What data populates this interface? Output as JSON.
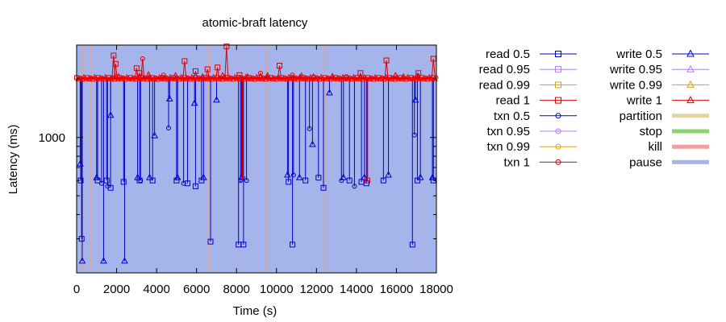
{
  "chart_data": {
    "type": "line",
    "title": "atomic-braft latency",
    "xlabel": "Time (s)",
    "ylabel": "Latency (ms)",
    "xlim": [
      0,
      18000
    ],
    "x_ticks": [
      0,
      2000,
      4000,
      6000,
      8000,
      10000,
      12000,
      14000,
      16000,
      18000
    ],
    "ylim": [
      200,
      3000
    ],
    "y_scale": "log",
    "y_ticks": [
      1000
    ],
    "background_shading": {
      "name": "pause",
      "color": "#a5b4ea",
      "range": [
        0,
        18000
      ]
    },
    "nemesis_lines": [
      {
        "name": "partition",
        "color": "#e3d89a",
        "x": [
          300,
          700,
          6600,
          8100,
          9500,
          12400,
          17300
        ]
      }
    ],
    "legend_placement": "outside-right",
    "legend": [
      {
        "name": "read 0.5",
        "color": "#0000cc",
        "marker": "square"
      },
      {
        "name": "read 0.95",
        "color": "#b07ef0",
        "marker": "square"
      },
      {
        "name": "read 0.99",
        "color": "#d4a017",
        "marker": "square"
      },
      {
        "name": "read 1",
        "color": "#dd0000",
        "marker": "square"
      },
      {
        "name": "txn 0.5",
        "color": "#0000cc",
        "marker": "circle"
      },
      {
        "name": "txn 0.95",
        "color": "#b07ef0",
        "marker": "circle"
      },
      {
        "name": "txn 0.99",
        "color": "#d4a017",
        "marker": "circle"
      },
      {
        "name": "txn 1",
        "color": "#dd0000",
        "marker": "circle"
      },
      {
        "name": "write 0.5",
        "color": "#0000cc",
        "marker": "triangle"
      },
      {
        "name": "write 0.95",
        "color": "#b07ef0",
        "marker": "triangle"
      },
      {
        "name": "write 0.99",
        "color": "#d4a017",
        "marker": "triangle"
      },
      {
        "name": "write 1",
        "color": "#dd0000",
        "marker": "triangle"
      },
      {
        "name": "partition",
        "color": "#e3d89a",
        "marker": "bar"
      },
      {
        "name": "stop",
        "color": "#88d570",
        "marker": "bar"
      },
      {
        "name": "kill",
        "color": "#f0a0a0",
        "marker": "bar"
      },
      {
        "name": "pause",
        "color": "#a5b4ea",
        "marker": "bar"
      }
    ],
    "baseline_ms": 2020,
    "series": [
      {
        "name": "write 0.5",
        "color": "#0000cc",
        "marker": "triangle",
        "dips": [
          [
            180,
            730
          ],
          [
            280,
            230
          ],
          [
            1000,
            620
          ],
          [
            1350,
            230
          ],
          [
            1700,
            1300
          ],
          [
            2400,
            230
          ],
          [
            3050,
            620
          ],
          [
            3650,
            620
          ],
          [
            3900,
            1020
          ],
          [
            4650,
            1580
          ],
          [
            5050,
            620
          ],
          [
            5900,
            1500
          ],
          [
            6350,
            620
          ],
          [
            7000,
            1560
          ],
          [
            8250,
            620
          ],
          [
            10550,
            640
          ],
          [
            11150,
            620
          ],
          [
            11800,
            920
          ],
          [
            12650,
            1700
          ],
          [
            13350,
            620
          ],
          [
            14400,
            620
          ],
          [
            15600,
            640
          ],
          [
            16950,
            1560
          ],
          [
            17200,
            620
          ],
          [
            17800,
            620
          ]
        ]
      },
      {
        "name": "read 0.5",
        "color": "#0000cc",
        "marker": "square",
        "dips": [
          [
            200,
            600
          ],
          [
            250,
            300
          ],
          [
            1050,
            600
          ],
          [
            1500,
            600
          ],
          [
            1700,
            550
          ],
          [
            2350,
            590
          ],
          [
            3150,
            600
          ],
          [
            3800,
            600
          ],
          [
            5000,
            600
          ],
          [
            5550,
            580
          ],
          [
            5950,
            560
          ],
          [
            6250,
            600
          ],
          [
            6700,
            290
          ],
          [
            8100,
            280
          ],
          [
            8350,
            280
          ],
          [
            10600,
            590
          ],
          [
            10800,
            280
          ],
          [
            11450,
            600
          ],
          [
            12100,
            620
          ],
          [
            12350,
            550
          ],
          [
            13650,
            600
          ],
          [
            14250,
            590
          ],
          [
            14500,
            580
          ],
          [
            15350,
            600
          ],
          [
            16800,
            280
          ],
          [
            17050,
            600
          ],
          [
            17850,
            600
          ]
        ]
      },
      {
        "name": "txn 0.5",
        "color": "#0000cc",
        "marker": "circle",
        "dips": [
          [
            1250,
            580
          ],
          [
            1550,
            560
          ],
          [
            3200,
            600
          ],
          [
            4600,
            1120
          ],
          [
            5350,
            580
          ],
          [
            8200,
            600
          ],
          [
            8500,
            600
          ],
          [
            10850,
            640
          ],
          [
            11650,
            1110
          ],
          [
            13250,
            600
          ],
          [
            13900,
            560
          ],
          [
            16900,
            1030
          ]
        ]
      },
      {
        "name": "read 1",
        "color": "#dd0000",
        "marker": "square",
        "peaks": [
          [
            1850,
            2650
          ],
          [
            1950,
            2400
          ],
          [
            3000,
            2280
          ],
          [
            3150,
            2150
          ],
          [
            5400,
            2480
          ],
          [
            5950,
            2200
          ],
          [
            6550,
            2250
          ],
          [
            7500,
            2950
          ],
          [
            7050,
            2300
          ],
          [
            8150,
            2100
          ],
          [
            10150,
            2350
          ],
          [
            14200,
            2150
          ],
          [
            15500,
            2500
          ],
          [
            17100,
            2150
          ],
          [
            17850,
            2550
          ]
        ],
        "drops": [
          [
            14550,
            600
          ],
          [
            8300,
            610
          ]
        ]
      },
      {
        "name": "write 1",
        "color": "#dd0000",
        "marker": "triangle",
        "peaks": [
          [
            2100,
            2050
          ],
          [
            3600,
            2100
          ],
          [
            4950,
            2080
          ],
          [
            6300,
            2050
          ],
          [
            7300,
            2080
          ],
          [
            8550,
            2050
          ],
          [
            9550,
            2080
          ],
          [
            11250,
            2070
          ],
          [
            11850,
            2050
          ],
          [
            12800,
            2060
          ],
          [
            15950,
            2080
          ],
          [
            16350,
            2050
          ],
          [
            17050,
            2060
          ]
        ]
      },
      {
        "name": "txn 1",
        "color": "#dd0000",
        "marker": "circle",
        "peaks": [
          [
            3300,
            2550
          ],
          [
            4350,
            2100
          ],
          [
            9200,
            2150
          ],
          [
            10800,
            2100
          ],
          [
            13500,
            2060
          ]
        ]
      }
    ]
  }
}
